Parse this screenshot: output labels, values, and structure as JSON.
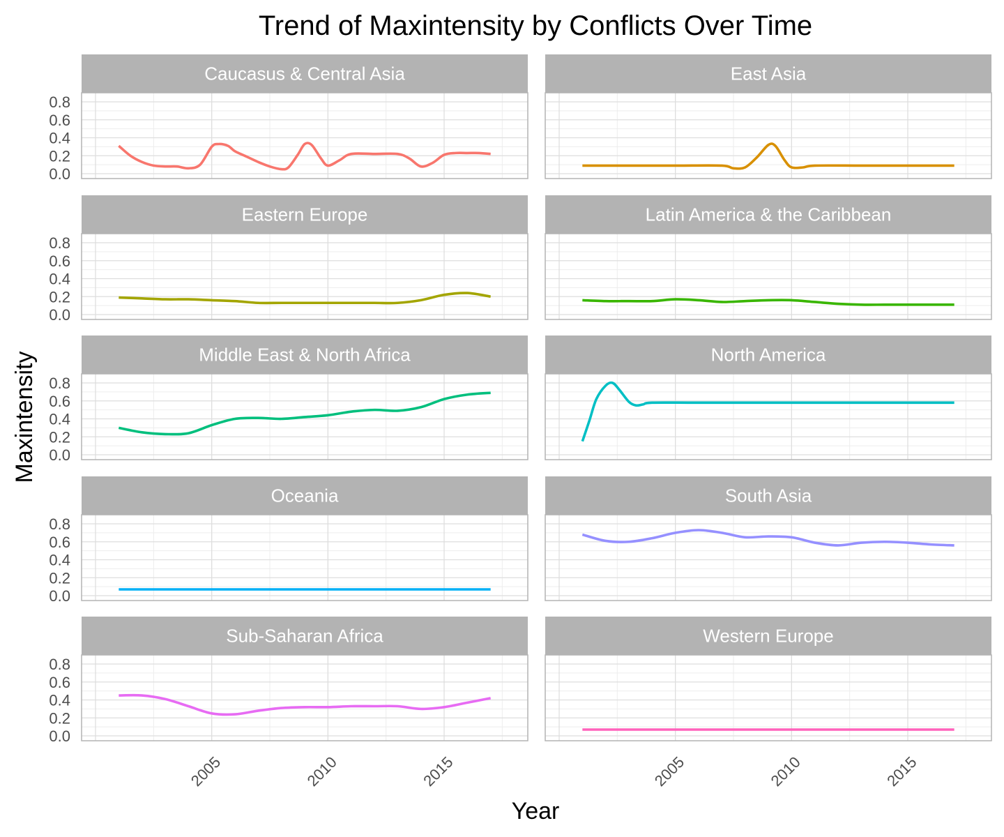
{
  "chart_data": {
    "type": "line",
    "title": "Trend of Maxintensity by Conflicts Over Time",
    "xlabel": "Year",
    "ylabel": "Maxintensity",
    "xlim": [
      1999.4,
      2018.6
    ],
    "ylim": [
      0,
      0.8
    ],
    "x_ticks": [
      2005,
      2010,
      2015
    ],
    "y_ticks": [
      0.0,
      0.2,
      0.4,
      0.6,
      0.8
    ],
    "y_tick_labels": [
      "0.0",
      "0.2",
      "0.4",
      "0.6",
      "0.8"
    ],
    "grid": true,
    "legend": "none",
    "facets": [
      {
        "name": "Caucasus & Central Asia",
        "color": "#F8766D",
        "points": [
          [
            2001,
            0.31
          ],
          [
            2001.5,
            0.2
          ],
          [
            2002,
            0.13
          ],
          [
            2002.5,
            0.09
          ],
          [
            2003,
            0.08
          ],
          [
            2003.5,
            0.08
          ],
          [
            2004,
            0.06
          ],
          [
            2004.5,
            0.1
          ],
          [
            2005,
            0.3
          ],
          [
            2005.3,
            0.33
          ],
          [
            2005.7,
            0.31
          ],
          [
            2006,
            0.25
          ],
          [
            2006.5,
            0.19
          ],
          [
            2007,
            0.13
          ],
          [
            2007.5,
            0.08
          ],
          [
            2008,
            0.05
          ],
          [
            2008.3,
            0.07
          ],
          [
            2008.7,
            0.21
          ],
          [
            2009,
            0.33
          ],
          [
            2009.3,
            0.32
          ],
          [
            2009.7,
            0.17
          ],
          [
            2010,
            0.09
          ],
          [
            2010.5,
            0.15
          ],
          [
            2011,
            0.22
          ],
          [
            2012,
            0.22
          ],
          [
            2013,
            0.22
          ],
          [
            2013.5,
            0.17
          ],
          [
            2014,
            0.08
          ],
          [
            2014.5,
            0.12
          ],
          [
            2015,
            0.21
          ],
          [
            2015.5,
            0.23
          ],
          [
            2016,
            0.23
          ],
          [
            2016.5,
            0.23
          ],
          [
            2017,
            0.22
          ]
        ]
      },
      {
        "name": "East Asia",
        "color": "#D89000",
        "points": [
          [
            2001,
            0.09
          ],
          [
            2003,
            0.09
          ],
          [
            2005,
            0.09
          ],
          [
            2007,
            0.09
          ],
          [
            2007.5,
            0.06
          ],
          [
            2008,
            0.07
          ],
          [
            2008.5,
            0.18
          ],
          [
            2009,
            0.32
          ],
          [
            2009.3,
            0.31
          ],
          [
            2009.7,
            0.15
          ],
          [
            2010,
            0.07
          ],
          [
            2010.5,
            0.07
          ],
          [
            2011,
            0.09
          ],
          [
            2013,
            0.09
          ],
          [
            2015,
            0.09
          ],
          [
            2017,
            0.09
          ]
        ]
      },
      {
        "name": "Eastern Europe",
        "color": "#A3A500",
        "points": [
          [
            2001,
            0.19
          ],
          [
            2002,
            0.18
          ],
          [
            2003,
            0.17
          ],
          [
            2004,
            0.17
          ],
          [
            2005,
            0.16
          ],
          [
            2006,
            0.15
          ],
          [
            2007,
            0.13
          ],
          [
            2008,
            0.13
          ],
          [
            2009,
            0.13
          ],
          [
            2010,
            0.13
          ],
          [
            2011,
            0.13
          ],
          [
            2012,
            0.13
          ],
          [
            2013,
            0.13
          ],
          [
            2014,
            0.16
          ],
          [
            2015,
            0.22
          ],
          [
            2016,
            0.24
          ],
          [
            2017,
            0.2
          ]
        ]
      },
      {
        "name": "Latin America & the Caribbean",
        "color": "#39B600",
        "points": [
          [
            2001,
            0.16
          ],
          [
            2002,
            0.15
          ],
          [
            2003,
            0.15
          ],
          [
            2004,
            0.15
          ],
          [
            2005,
            0.17
          ],
          [
            2006,
            0.16
          ],
          [
            2007,
            0.14
          ],
          [
            2008,
            0.15
          ],
          [
            2009,
            0.16
          ],
          [
            2010,
            0.16
          ],
          [
            2011,
            0.14
          ],
          [
            2012,
            0.12
          ],
          [
            2013,
            0.11
          ],
          [
            2014,
            0.11
          ],
          [
            2015,
            0.11
          ],
          [
            2016,
            0.11
          ],
          [
            2017,
            0.11
          ]
        ]
      },
      {
        "name": "Middle East & North Africa",
        "color": "#00BF7D",
        "points": [
          [
            2001,
            0.3
          ],
          [
            2002,
            0.25
          ],
          [
            2003,
            0.23
          ],
          [
            2004,
            0.24
          ],
          [
            2005,
            0.33
          ],
          [
            2006,
            0.4
          ],
          [
            2007,
            0.41
          ],
          [
            2008,
            0.4
          ],
          [
            2009,
            0.42
          ],
          [
            2010,
            0.44
          ],
          [
            2011,
            0.48
          ],
          [
            2012,
            0.5
          ],
          [
            2013,
            0.49
          ],
          [
            2014,
            0.53
          ],
          [
            2015,
            0.62
          ],
          [
            2016,
            0.67
          ],
          [
            2017,
            0.69
          ]
        ]
      },
      {
        "name": "North America",
        "color": "#00BFC4",
        "points": [
          [
            2001,
            0.15
          ],
          [
            2001.3,
            0.38
          ],
          [
            2001.6,
            0.62
          ],
          [
            2002,
            0.77
          ],
          [
            2002.3,
            0.8
          ],
          [
            2002.6,
            0.72
          ],
          [
            2003,
            0.59
          ],
          [
            2003.3,
            0.55
          ],
          [
            2003.6,
            0.56
          ],
          [
            2004,
            0.58
          ],
          [
            2006,
            0.58
          ],
          [
            2010,
            0.58
          ],
          [
            2014,
            0.58
          ],
          [
            2017,
            0.58
          ]
        ]
      },
      {
        "name": "Oceania",
        "color": "#00B0F6",
        "points": [
          [
            2001,
            0.07
          ],
          [
            2005,
            0.07
          ],
          [
            2009,
            0.07
          ],
          [
            2013,
            0.07
          ],
          [
            2017,
            0.07
          ]
        ]
      },
      {
        "name": "South Asia",
        "color": "#9590FF",
        "points": [
          [
            2001,
            0.68
          ],
          [
            2002,
            0.61
          ],
          [
            2003,
            0.6
          ],
          [
            2004,
            0.64
          ],
          [
            2005,
            0.7
          ],
          [
            2006,
            0.73
          ],
          [
            2007,
            0.7
          ],
          [
            2008,
            0.65
          ],
          [
            2009,
            0.66
          ],
          [
            2010,
            0.65
          ],
          [
            2011,
            0.59
          ],
          [
            2012,
            0.56
          ],
          [
            2013,
            0.59
          ],
          [
            2014,
            0.6
          ],
          [
            2015,
            0.59
          ],
          [
            2016,
            0.57
          ],
          [
            2017,
            0.56
          ]
        ]
      },
      {
        "name": "Sub-Saharan Africa",
        "color": "#E76BF3",
        "points": [
          [
            2001,
            0.45
          ],
          [
            2002,
            0.45
          ],
          [
            2003,
            0.41
          ],
          [
            2004,
            0.33
          ],
          [
            2005,
            0.25
          ],
          [
            2006,
            0.24
          ],
          [
            2007,
            0.28
          ],
          [
            2008,
            0.31
          ],
          [
            2009,
            0.32
          ],
          [
            2010,
            0.32
          ],
          [
            2011,
            0.33
          ],
          [
            2012,
            0.33
          ],
          [
            2013,
            0.33
          ],
          [
            2014,
            0.3
          ],
          [
            2015,
            0.32
          ],
          [
            2016,
            0.37
          ],
          [
            2017,
            0.42
          ]
        ]
      },
      {
        "name": "Western Europe",
        "color": "#FF62BC",
        "points": [
          [
            2001,
            0.07
          ],
          [
            2005,
            0.07
          ],
          [
            2009,
            0.07
          ],
          [
            2013,
            0.07
          ],
          [
            2017,
            0.07
          ]
        ]
      }
    ]
  }
}
